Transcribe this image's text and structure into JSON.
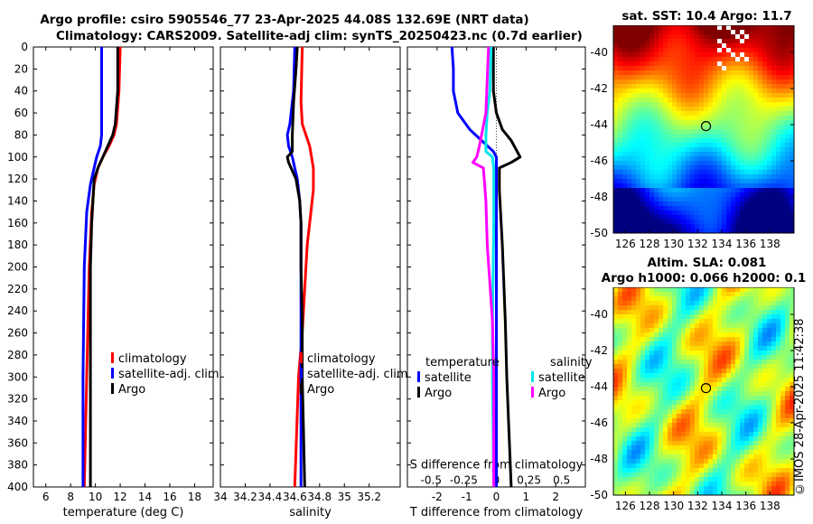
{
  "header": {
    "line1": "Argo profile: csiro 5905546_77 23-Apr-2025 44.08S 132.69E (NRT data)",
    "line2": "Climatology: CARS2009. Satellite-adj clim: synTS_20250423.nc (0.7d earlier)"
  },
  "sst_map": {
    "title": "sat. SST: 10.4 Argo: 11.7",
    "lat_ticks": [
      "-40",
      "-42",
      "-44",
      "-46",
      "-48",
      "-50"
    ],
    "lon_ticks": [
      "126",
      "128",
      "130",
      "132",
      "134",
      "136",
      "138"
    ],
    "marker": {
      "lon": 132.69,
      "lat": -44.08
    }
  },
  "sla_map": {
    "title1": "Altim. SLA: 0.081",
    "title2": "Argo h1000: 0.066 h2000: 0.1",
    "lat_ticks": [
      "-40",
      "-42",
      "-44",
      "-46",
      "-48",
      "-50"
    ],
    "lon_ticks": [
      "126",
      "128",
      "130",
      "132",
      "134",
      "136",
      "138"
    ],
    "marker": {
      "lon": 132.69,
      "lat": -44.08
    }
  },
  "stamp": "©IMOS 28-Apr-2025 11:42:38",
  "colors": {
    "climatology": "#ff0000",
    "satellite": "#0000ff",
    "argo": "#000000",
    "sat_salinity": "#00e5ee",
    "argo_salinity": "#ff00ff"
  },
  "chart_data": [
    {
      "type": "line",
      "xlabel": "temperature (deg C)",
      "ylabel": "",
      "xlim": [
        5,
        19.5
      ],
      "ylim": [
        400,
        0
      ],
      "xticks": [
        "6",
        "8",
        "10",
        "12",
        "14",
        "16",
        "18"
      ],
      "yticks": [
        "0",
        "20",
        "40",
        "60",
        "80",
        "100",
        "120",
        "140",
        "160",
        "180",
        "200",
        "220",
        "240",
        "260",
        "280",
        "300",
        "320",
        "340",
        "360",
        "380",
        "400"
      ],
      "legend": [
        {
          "name": "climatology",
          "color": "#ff0000"
        },
        {
          "name": "satellite-adj. clim",
          "color": "#0000ff"
        },
        {
          "name": "Argo",
          "color": "#000000"
        }
      ],
      "series": [
        {
          "name": "climatology",
          "color": "#ff0000",
          "depth": [
            0,
            40,
            70,
            80,
            90,
            100,
            110,
            125,
            150,
            200,
            300,
            400
          ],
          "values": [
            12.0,
            11.9,
            11.7,
            11.5,
            11.1,
            10.6,
            10.2,
            9.9,
            9.7,
            9.5,
            9.3,
            9.1
          ]
        },
        {
          "name": "satellite-adj. clim",
          "color": "#0000ff",
          "depth": [
            0,
            60,
            80,
            90,
            100,
            110,
            125,
            150,
            200,
            300,
            400
          ],
          "values": [
            10.5,
            10.5,
            10.5,
            10.4,
            10.1,
            9.9,
            9.6,
            9.3,
            9.1,
            9.0,
            9.0
          ]
        },
        {
          "name": "Argo",
          "color": "#000000",
          "depth": [
            0,
            40,
            70,
            80,
            90,
            100,
            110,
            120,
            140,
            160,
            200,
            250,
            300,
            350,
            400
          ],
          "values": [
            11.8,
            11.8,
            11.6,
            11.4,
            11.0,
            10.6,
            10.2,
            9.9,
            9.8,
            9.7,
            9.6,
            9.6,
            9.6,
            9.6,
            9.6
          ]
        }
      ]
    },
    {
      "type": "line",
      "xlabel": "salinity",
      "xlim": [
        34.0,
        35.45
      ],
      "ylim": [
        400,
        0
      ],
      "xticks": [
        "34",
        "34.2",
        "34.4",
        "34.6",
        "34.8",
        "35",
        "35.2"
      ],
      "legend": [
        {
          "name": "climatology",
          "color": "#ff0000"
        },
        {
          "name": "satellite-adj. clim",
          "color": "#0000ff"
        },
        {
          "name": "Argo",
          "color": "#000000"
        }
      ],
      "series": [
        {
          "name": "climatology",
          "color": "#ff0000",
          "depth": [
            0,
            50,
            70,
            90,
            110,
            130,
            150,
            180,
            220,
            260,
            300,
            400
          ],
          "values": [
            34.66,
            34.65,
            34.66,
            34.72,
            34.75,
            34.75,
            34.73,
            34.7,
            34.68,
            34.66,
            34.63,
            34.6
          ]
        },
        {
          "name": "satellite-adj. clim",
          "color": "#0000ff",
          "depth": [
            0,
            40,
            70,
            80,
            90,
            100,
            110,
            120,
            140,
            160,
            200,
            300,
            400
          ],
          "values": [
            34.6,
            34.59,
            34.56,
            34.54,
            34.55,
            34.58,
            34.6,
            34.62,
            34.64,
            34.65,
            34.65,
            34.65,
            34.65
          ]
        },
        {
          "name": "Argo",
          "color": "#000000",
          "depth": [
            0,
            20,
            50,
            80,
            95,
            100,
            105,
            110,
            120,
            140,
            160,
            200,
            250,
            300,
            350,
            400
          ],
          "values": [
            34.62,
            34.61,
            34.59,
            34.58,
            34.58,
            34.54,
            34.55,
            34.57,
            34.61,
            34.64,
            34.65,
            34.65,
            34.66,
            34.66,
            34.67,
            34.68
          ]
        }
      ]
    },
    {
      "type": "line",
      "xlabel": "T difference from climatology",
      "top_xlabel": "S difference from climatology",
      "xlim": [
        -3,
        3
      ],
      "ylim": [
        400,
        0
      ],
      "xticks": [
        "-2",
        "-1",
        "0",
        "1",
        "2"
      ],
      "s_xticks": [
        "-0.5",
        "-0.25",
        "0",
        "0.25",
        "0.5"
      ],
      "legend_t": {
        "title": "temperature",
        "items": [
          {
            "name": "satellite",
            "color": "#0000ff"
          },
          {
            "name": "Argo",
            "color": "#000000"
          }
        ]
      },
      "legend_s": {
        "title": "salinity",
        "items": [
          {
            "name": "satellite",
            "color": "#00e5ee"
          },
          {
            "name": "Argo",
            "color": "#ff00ff"
          }
        ]
      },
      "series": [
        {
          "name": "temperature satellite",
          "color": "#0000ff",
          "depth": [
            0,
            20,
            40,
            60,
            75,
            85,
            95,
            100,
            120,
            160,
            220,
            300,
            400
          ],
          "values": [
            -1.5,
            -1.45,
            -1.45,
            -1.3,
            -0.9,
            -0.5,
            -0.1,
            0.0,
            0.0,
            0.0,
            0.0,
            0.0,
            0.0
          ]
        },
        {
          "name": "temperature Argo",
          "color": "#000000",
          "depth": [
            0,
            40,
            60,
            75,
            85,
            95,
            100,
            105,
            110,
            130,
            180,
            250,
            300,
            400
          ],
          "values": [
            -0.1,
            -0.1,
            0.0,
            0.2,
            0.5,
            0.7,
            0.8,
            0.5,
            0.1,
            0.1,
            0.2,
            0.3,
            0.35,
            0.5
          ]
        },
        {
          "name": "salinity satellite",
          "color": "#00e5ee",
          "depth": [
            0,
            40,
            60,
            80,
            95,
            100,
            110,
            160,
            250,
            300,
            400
          ],
          "values": [
            -0.04,
            -0.05,
            -0.07,
            -0.08,
            -0.08,
            -0.03,
            -0.02,
            -0.02,
            -0.03,
            -0.03,
            -0.02
          ]
        },
        {
          "name": "salinity Argo",
          "color": "#ff00ff",
          "depth": [
            0,
            60,
            90,
            100,
            105,
            110,
            140,
            180,
            250,
            300,
            400
          ],
          "values": [
            -0.06,
            -0.08,
            -0.13,
            -0.15,
            -0.18,
            -0.1,
            -0.08,
            -0.07,
            -0.03,
            -0.02,
            -0.02
          ]
        }
      ]
    }
  ]
}
